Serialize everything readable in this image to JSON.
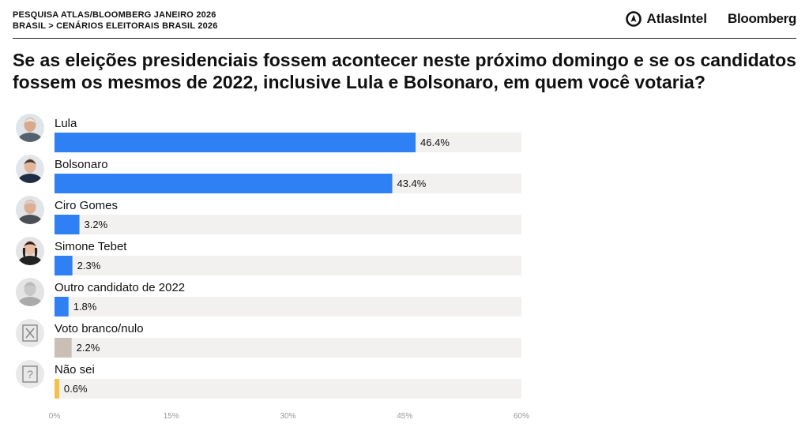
{
  "header": {
    "survey_line": "PESQUISA ATLAS/BLOOMBERG JANEIRO 2026",
    "breadcrumb_root": "BRASIL",
    "breadcrumb_sep": ">",
    "breadcrumb_section": "CENÁRIOS ELEITORAIS BRASIL 2026",
    "atlas_logo_text": "AtlasIntel",
    "bloomberg_logo_text": "Bloomberg"
  },
  "question": "Se as eleições presidenciais fossem acontecer neste próximo domingo e se os candidatos fossem os mesmos de 2022, inclusive Lula e Bolsonaro, em quem você votaria?",
  "chart_data": {
    "type": "bar",
    "orientation": "horizontal",
    "categories": [
      "Lula",
      "Bolsonaro",
      "Ciro Gomes",
      "Simone Tebet",
      "Outro candidato de 2022",
      "Voto branco/nulo",
      "Não sei"
    ],
    "values": [
      46.4,
      43.4,
      3.2,
      2.3,
      1.8,
      2.2,
      0.6
    ],
    "value_labels": [
      "46.4%",
      "43.4%",
      "3.2%",
      "2.3%",
      "1.8%",
      "2.2%",
      "0.6%"
    ],
    "colors": [
      "#2f80f5",
      "#2f80f5",
      "#2f80f5",
      "#2f80f5",
      "#2f80f5",
      "#c9bfb7",
      "#f5c04a"
    ],
    "track_color": "#f2f1ef",
    "avatars": [
      "person-lula-icon",
      "person-bolsonaro-icon",
      "person-ciro-icon",
      "person-tebet-icon",
      "person-generic-icon",
      "blank-vote-icon",
      "question-mark-icon"
    ],
    "xlim": [
      0,
      60
    ],
    "xticks": [
      0,
      15,
      30,
      45,
      60
    ],
    "xtick_labels": [
      "0%",
      "15%",
      "30%",
      "45%",
      "60%"
    ],
    "grid": false
  }
}
